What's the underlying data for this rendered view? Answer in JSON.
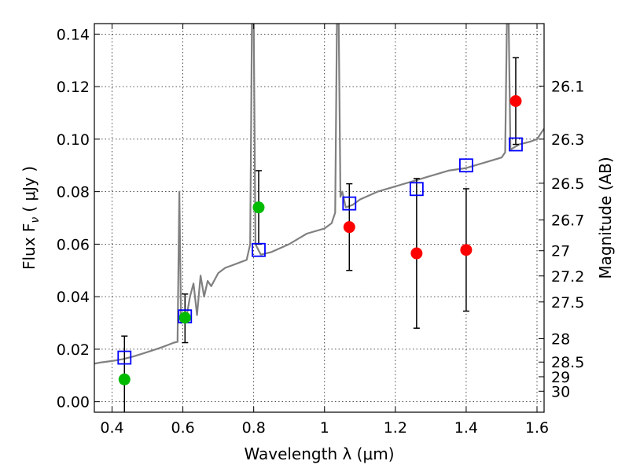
{
  "chart_data": {
    "type": "scatter",
    "xlabel": "Wavelength  λ (μm)",
    "ylabel": "Flux  F",
    "ylabel_sub": "ν",
    "ylabel_unit": "( μJy )",
    "y2label": "Magnitude (AB)",
    "xlim": [
      0.35,
      1.62
    ],
    "ylim": [
      -0.004,
      0.144
    ],
    "grid": true,
    "x_ticks": [
      {
        "value": 0.4,
        "label": "0.4"
      },
      {
        "value": 0.6,
        "label": "0.6"
      },
      {
        "value": 0.8,
        "label": "0.8"
      },
      {
        "value": 1.0,
        "label": "1"
      },
      {
        "value": 1.2,
        "label": "1.2"
      },
      {
        "value": 1.4,
        "label": "1.4"
      },
      {
        "value": 1.6,
        "label": "1.6"
      }
    ],
    "y_ticks": [
      {
        "value": 0.0,
        "label": "0.00"
      },
      {
        "value": 0.02,
        "label": "0.02"
      },
      {
        "value": 0.04,
        "label": "0.04"
      },
      {
        "value": 0.06,
        "label": "0.06"
      },
      {
        "value": 0.08,
        "label": "0.08"
      },
      {
        "value": 0.1,
        "label": "0.10"
      },
      {
        "value": 0.12,
        "label": "0.12"
      },
      {
        "value": 0.14,
        "label": "0.14"
      }
    ],
    "y2_ticks": [
      {
        "flux": 0.1202,
        "label": "26.1"
      },
      {
        "flux": 0.1,
        "label": "26.3"
      },
      {
        "flux": 0.0832,
        "label": "26.5"
      },
      {
        "flux": 0.0692,
        "label": "26.7"
      },
      {
        "flux": 0.0575,
        "label": "27"
      },
      {
        "flux": 0.0479,
        "label": "27.2"
      },
      {
        "flux": 0.038,
        "label": "27.5"
      },
      {
        "flux": 0.024,
        "label": "28"
      },
      {
        "flux": 0.0151,
        "label": "28.5"
      },
      {
        "flux": 0.0095,
        "label": "29"
      },
      {
        "flux": 0.004,
        "label": "30"
      }
    ],
    "model_spectrum": {
      "color": "#808080",
      "points": [
        [
          0.35,
          0.0145
        ],
        [
          0.37,
          0.015
        ],
        [
          0.4,
          0.0155
        ],
        [
          0.43,
          0.0162
        ],
        [
          0.46,
          0.0172
        ],
        [
          0.49,
          0.0185
        ],
        [
          0.52,
          0.0198
        ],
        [
          0.55,
          0.0212
        ],
        [
          0.575,
          0.0225
        ],
        [
          0.585,
          0.0228
        ],
        [
          0.59,
          0.08
        ],
        [
          0.595,
          0.03
        ],
        [
          0.6,
          0.031
        ],
        [
          0.61,
          0.032
        ],
        [
          0.62,
          0.04
        ],
        [
          0.63,
          0.045
        ],
        [
          0.64,
          0.033
        ],
        [
          0.65,
          0.048
        ],
        [
          0.66,
          0.04
        ],
        [
          0.67,
          0.046
        ],
        [
          0.68,
          0.044
        ],
        [
          0.7,
          0.049
        ],
        [
          0.72,
          0.051
        ],
        [
          0.74,
          0.052
        ],
        [
          0.76,
          0.053
        ],
        [
          0.78,
          0.054
        ],
        [
          0.79,
          0.06
        ],
        [
          0.795,
          0.144
        ],
        [
          0.8,
          0.144
        ],
        [
          0.805,
          0.06
        ],
        [
          0.82,
          0.056
        ],
        [
          0.85,
          0.057
        ],
        [
          0.9,
          0.06
        ],
        [
          0.95,
          0.064
        ],
        [
          1.0,
          0.066
        ],
        [
          1.02,
          0.068
        ],
        [
          1.03,
          0.072
        ],
        [
          1.035,
          0.144
        ],
        [
          1.04,
          0.144
        ],
        [
          1.045,
          0.078
        ],
        [
          1.05,
          0.08
        ],
        [
          1.06,
          0.074
        ],
        [
          1.08,
          0.075
        ],
        [
          1.1,
          0.077
        ],
        [
          1.15,
          0.08
        ],
        [
          1.2,
          0.082
        ],
        [
          1.25,
          0.084
        ],
        [
          1.3,
          0.086
        ],
        [
          1.35,
          0.088
        ],
        [
          1.4,
          0.089
        ],
        [
          1.45,
          0.091
        ],
        [
          1.5,
          0.093
        ],
        [
          1.51,
          0.095
        ],
        [
          1.515,
          0.144
        ],
        [
          1.52,
          0.144
        ],
        [
          1.525,
          0.096
        ],
        [
          1.55,
          0.098
        ],
        [
          1.58,
          0.099
        ],
        [
          1.6,
          0.1
        ],
        [
          1.62,
          0.104
        ]
      ]
    },
    "model_photometry": {
      "color": "#0000ff",
      "points": [
        [
          0.435,
          0.0168
        ],
        [
          0.606,
          0.0325
        ],
        [
          0.814,
          0.0578
        ],
        [
          1.07,
          0.0755
        ],
        [
          1.26,
          0.081
        ],
        [
          1.4,
          0.09
        ],
        [
          1.54,
          0.098
        ]
      ]
    },
    "observed": [
      {
        "x": 0.435,
        "y": 0.0085,
        "err_low": 0.013,
        "err_high": 0.0165,
        "color": "#00bb00"
      },
      {
        "x": 0.606,
        "y": 0.032,
        "err_low": 0.0095,
        "err_high": 0.009,
        "color": "#00bb00"
      },
      {
        "x": 0.814,
        "y": 0.074,
        "err_low": 0.014,
        "err_high": 0.014,
        "color": "#00bb00"
      },
      {
        "x": 1.07,
        "y": 0.0665,
        "err_low": 0.0165,
        "err_high": 0.0165,
        "color": "#ff0000"
      },
      {
        "x": 1.26,
        "y": 0.0565,
        "err_low": 0.0285,
        "err_high": 0.0285,
        "color": "#ff0000"
      },
      {
        "x": 1.4,
        "y": 0.0578,
        "err_low": 0.0233,
        "err_high": 0.0233,
        "color": "#ff0000"
      },
      {
        "x": 1.54,
        "y": 0.1145,
        "err_low": 0.0165,
        "err_high": 0.0165,
        "color": "#ff0000"
      }
    ]
  }
}
